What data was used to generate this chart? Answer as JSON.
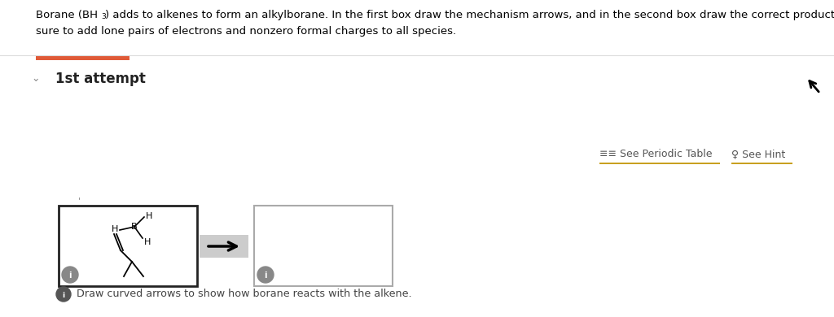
{
  "bg_color": "#ffffff",
  "line1": "Borane (BH₃) adds to alkenes to form an alkylborane. In the first box draw the mechanism arrows, and in the second box draw the correct product. Be",
  "line2": "sure to add lone pairs of electrons and nonzero formal charges to all species.",
  "section_label": "1st attempt",
  "orange_bar_color": "#e05a38",
  "chevron_color": "#888888",
  "link_color": "#c8a020",
  "link_underline_color": "#c8a020",
  "info_text": "Draw curved arrows to show how borane reacts with the alkene.",
  "arrow_bg": "#cccccc",
  "box1_border": "#222222",
  "box2_border": "#aaaaaa",
  "info_circle_color": "#888888"
}
